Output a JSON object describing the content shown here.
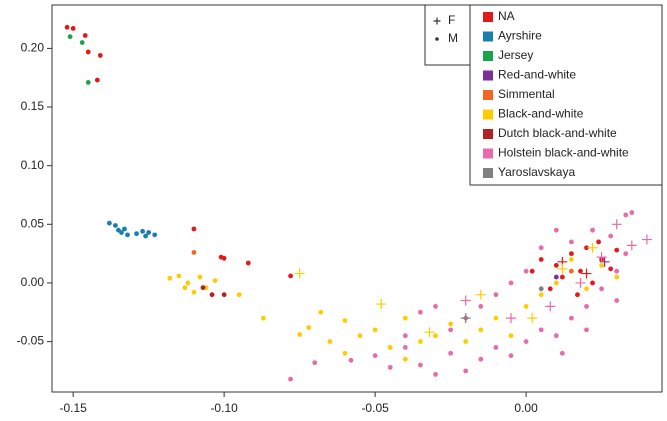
{
  "chart_data": {
    "type": "scatter",
    "xlim": [
      -0.157,
      0.045
    ],
    "ylim": [
      -0.093,
      0.237
    ],
    "xticks": [
      -0.15,
      {
        "value": -0.1,
        "label": "-0.10"
      },
      -0.05,
      {
        "value": 0,
        "label": "0.00"
      }
    ],
    "yticks": [
      -0.05,
      {
        "value": 0,
        "label": "0.00"
      },
      0.05,
      {
        "value": 0.1,
        "label": "0.10"
      },
      0.15,
      {
        "value": 0.2,
        "label": "0.20"
      }
    ],
    "sex_legend": [
      {
        "label": "F",
        "marker": "plus"
      },
      {
        "label": "M",
        "marker": "dot"
      }
    ],
    "series": [
      {
        "name": "NA",
        "color": "#e31a1c",
        "x": [
          -0.152,
          -0.15,
          -0.146,
          -0.145,
          -0.142,
          -0.141,
          -0.11,
          -0.101,
          -0.1,
          -0.092,
          -0.078,
          0.005,
          0.01,
          0.012,
          0.015,
          0.018,
          0.02,
          0.022,
          0.025,
          0.028,
          0.03,
          0.008,
          0.002,
          0.017,
          0.024,
          0.012,
          0.02
        ],
        "y": [
          0.218,
          0.217,
          0.211,
          0.197,
          0.173,
          0.194,
          0.046,
          0.022,
          0.021,
          0.017,
          0.006,
          0.02,
          0.015,
          0.005,
          0.025,
          0.01,
          0.03,
          0,
          0.02,
          0.012,
          0.028,
          -0.005,
          0.01,
          -0.01,
          0.035,
          0.018,
          0.008
        ],
        "sex": [
          "M",
          "M",
          "M",
          "M",
          "M",
          "M",
          "M",
          "M",
          "M",
          "M",
          "M",
          "M",
          "M",
          "M",
          "M",
          "M",
          "M",
          "M",
          "M",
          "M",
          "M",
          "M",
          "M",
          "M",
          "M",
          "F",
          "F"
        ]
      },
      {
        "name": "Ayrshire",
        "color": "#1a7fb0",
        "x": [
          -0.138,
          -0.136,
          -0.135,
          -0.134,
          -0.133,
          -0.132,
          -0.129,
          -0.127,
          -0.126,
          -0.125,
          -0.123
        ],
        "y": [
          0.051,
          0.049,
          0.045,
          0.043,
          0.046,
          0.041,
          0.042,
          0.044,
          0.04,
          0.043,
          0.041
        ],
        "sex": [
          "M",
          "M",
          "M",
          "M",
          "M",
          "M",
          "M",
          "M",
          "M",
          "M",
          "M"
        ]
      },
      {
        "name": "Jersey",
        "color": "#1aa34a",
        "x": [
          -0.151,
          -0.147,
          -0.145
        ],
        "y": [
          0.21,
          0.205,
          0.171
        ],
        "sex": [
          "M",
          "M",
          "M"
        ]
      },
      {
        "name": "Red-and-white",
        "color": "#7b3294",
        "x": [
          0.01,
          0.026
        ],
        "y": [
          0.005,
          0.018
        ],
        "sex": [
          "M",
          "F"
        ]
      },
      {
        "name": "Simmental",
        "color": "#f26522",
        "x": [
          -0.11,
          0.015
        ],
        "y": [
          0.026,
          0.01
        ],
        "sex": [
          "M",
          "M"
        ]
      },
      {
        "name": "Black-and-white",
        "color": "#ffcc00",
        "x": [
          -0.118,
          -0.115,
          -0.113,
          -0.112,
          -0.11,
          -0.108,
          -0.106,
          -0.103,
          -0.095,
          -0.087,
          -0.075,
          -0.072,
          -0.068,
          -0.065,
          -0.06,
          -0.055,
          -0.05,
          -0.045,
          -0.04,
          -0.035,
          -0.03,
          -0.025,
          -0.02,
          -0.015,
          -0.01,
          -0.005,
          0,
          0.005,
          0.01,
          0.015,
          0.02,
          0.025,
          0.03,
          -0.075,
          -0.048,
          -0.032,
          -0.015,
          0.002,
          0.012,
          0.022,
          -0.06,
          -0.04
        ],
        "y": [
          0.004,
          0.006,
          -0.004,
          0,
          -0.008,
          0.005,
          -0.004,
          0.002,
          -0.01,
          -0.03,
          -0.044,
          -0.038,
          -0.025,
          -0.05,
          -0.032,
          -0.045,
          -0.04,
          -0.055,
          -0.03,
          -0.05,
          -0.045,
          -0.035,
          -0.05,
          -0.04,
          -0.03,
          -0.045,
          -0.02,
          -0.01,
          0,
          0.02,
          -0.005,
          0.015,
          0.005,
          0.008,
          -0.018,
          -0.042,
          -0.01,
          -0.03,
          0.012,
          0.03,
          -0.06,
          -0.065
        ],
        "sex": [
          "M",
          "M",
          "M",
          "M",
          "M",
          "M",
          "M",
          "M",
          "M",
          "M",
          "M",
          "M",
          "M",
          "M",
          "M",
          "M",
          "M",
          "M",
          "M",
          "M",
          "M",
          "M",
          "M",
          "M",
          "M",
          "M",
          "M",
          "M",
          "M",
          "M",
          "M",
          "M",
          "M",
          "F",
          "F",
          "F",
          "F",
          "F",
          "F",
          "F",
          "M",
          "M"
        ]
      },
      {
        "name": "Dutch black-and-white",
        "color": "#b22222",
        "x": [
          -0.104,
          -0.1,
          -0.107
        ],
        "y": [
          -0.01,
          -0.01,
          -0.004
        ],
        "sex": [
          "M",
          "M",
          "M"
        ]
      },
      {
        "name": "Holstein black-and-white",
        "color": "#e86aa8",
        "x": [
          -0.078,
          -0.07,
          -0.058,
          -0.05,
          -0.045,
          -0.04,
          -0.035,
          -0.03,
          -0.025,
          -0.02,
          -0.015,
          -0.01,
          -0.005,
          0,
          0.005,
          0.01,
          0.015,
          0.02,
          0.025,
          0.03,
          0.033,
          0.035,
          0.033,
          0.028,
          0.022,
          0.015,
          0.01,
          0.005,
          0,
          -0.005,
          -0.01,
          -0.015,
          -0.02,
          -0.025,
          -0.03,
          -0.035,
          0.04,
          0.035,
          0.03,
          0.025,
          0.018,
          0.008,
          -0.005,
          -0.02,
          -0.04,
          0.012,
          0.02,
          0.03
        ],
        "y": [
          -0.082,
          -0.068,
          -0.066,
          -0.062,
          -0.072,
          -0.045,
          -0.07,
          -0.078,
          -0.06,
          -0.075,
          -0.065,
          -0.055,
          -0.062,
          -0.05,
          -0.04,
          -0.045,
          -0.03,
          -0.02,
          -0.005,
          0.01,
          0.025,
          0.06,
          0.058,
          0.04,
          0.045,
          0.035,
          0.045,
          0.03,
          0.01,
          0,
          -0.01,
          -0.02,
          -0.03,
          -0.04,
          -0.02,
          -0.025,
          0.037,
          0.032,
          0.05,
          0.022,
          0,
          -0.02,
          -0.03,
          -0.015,
          -0.055,
          -0.06,
          -0.04,
          -0.015
        ],
        "sex": [
          "M",
          "M",
          "M",
          "M",
          "M",
          "M",
          "M",
          "M",
          "M",
          "M",
          "M",
          "M",
          "M",
          "M",
          "M",
          "M",
          "M",
          "M",
          "M",
          "M",
          "M",
          "M",
          "M",
          "M",
          "M",
          "M",
          "M",
          "M",
          "M",
          "M",
          "M",
          "M",
          "M",
          "M",
          "M",
          "M",
          "F",
          "F",
          "F",
          "F",
          "F",
          "F",
          "F",
          "F",
          "M",
          "M",
          "M",
          "M"
        ]
      },
      {
        "name": "Yaroslavskaya",
        "color": "#808080",
        "x": [
          0.005,
          -0.02
        ],
        "y": [
          -0.005,
          -0.03
        ],
        "sex": [
          "M",
          "F"
        ]
      }
    ]
  }
}
